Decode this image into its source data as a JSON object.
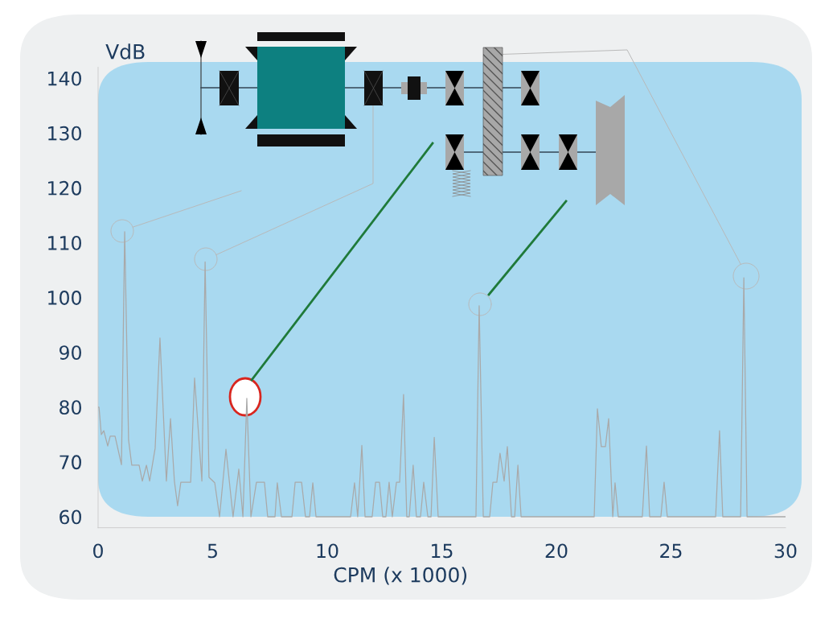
{
  "chart_data": {
    "type": "line",
    "xlabel": "CPM (x 1000)",
    "ylabel": "VdB",
    "xlim": [
      0,
      30
    ],
    "xticks": [
      0,
      5,
      10,
      15,
      20,
      25,
      30
    ],
    "ylim": [
      58,
      142
    ],
    "yticks": [
      60,
      70,
      80,
      90,
      100,
      110,
      120,
      130,
      140
    ],
    "grid": false,
    "series": [
      {
        "color": "#a9a9a9",
        "x": [
          0,
          0.04,
          0.14,
          0.25,
          0.42,
          0.53,
          0.74,
          1.02,
          1.16,
          1.33,
          1.47,
          1.79,
          1.93,
          2.11,
          2.25,
          2.49,
          2.7,
          2.98,
          3.16,
          3.33,
          3.47,
          3.61,
          4.04,
          4.21,
          4.53,
          4.67,
          4.84,
          5.09,
          5.3,
          5.58,
          5.89,
          6.14,
          6.32,
          6.49,
          6.67,
          6.91,
          7.26,
          7.4,
          7.72,
          7.82,
          8.0,
          8.46,
          8.6,
          8.88,
          9.05,
          9.23,
          9.37,
          9.51,
          11.02,
          11.19,
          11.33,
          11.51,
          11.65,
          11.96,
          12.11,
          12.28,
          12.42,
          12.56,
          12.7,
          12.84,
          13.02,
          13.16,
          13.33,
          13.47,
          13.58,
          13.75,
          13.89,
          14.07,
          14.21,
          14.39,
          14.53,
          14.67,
          14.84,
          16.49,
          16.63,
          16.81,
          17.09,
          17.23,
          17.4,
          17.54,
          17.72,
          17.86,
          18.04,
          18.18,
          18.32,
          18.46,
          21.65,
          21.79,
          21.96,
          22.14,
          22.28,
          22.46,
          22.56,
          22.7,
          23.75,
          23.93,
          24.07,
          24.56,
          24.7,
          24.84,
          26.95,
          27.12,
          27.26,
          28.04,
          28.18,
          28.32,
          30
        ],
        "values": [
          80,
          80,
          75,
          75.7,
          72.9,
          74.7,
          74.7,
          69.5,
          112,
          74,
          69.4,
          69.4,
          66.5,
          69.4,
          66.5,
          72.5,
          92.6,
          66.5,
          77.9,
          66.5,
          62,
          66.3,
          66.3,
          85.3,
          66.5,
          106.5,
          67.2,
          66.2,
          60,
          72.3,
          60,
          68.7,
          60,
          81.6,
          60,
          66.3,
          66.3,
          60,
          60,
          66.2,
          60,
          60,
          66.3,
          66.3,
          60,
          60,
          66.2,
          60,
          60,
          66.2,
          60,
          73,
          60,
          60,
          66.3,
          66.3,
          60,
          60,
          66.3,
          60,
          66.3,
          66.3,
          82.3,
          60,
          60,
          69.4,
          60,
          60,
          66.3,
          60,
          60,
          74.5,
          60,
          60,
          98.5,
          60,
          60,
          66.3,
          66.3,
          71.6,
          66.5,
          72.8,
          60,
          60,
          69.4,
          60,
          60,
          79.7,
          72.8,
          72.8,
          77.9,
          60,
          66.2,
          60,
          60,
          72.9,
          60,
          60,
          66.3,
          60,
          60,
          75.7,
          60,
          60,
          103.6,
          60,
          60
        ]
      }
    ]
  }
}
